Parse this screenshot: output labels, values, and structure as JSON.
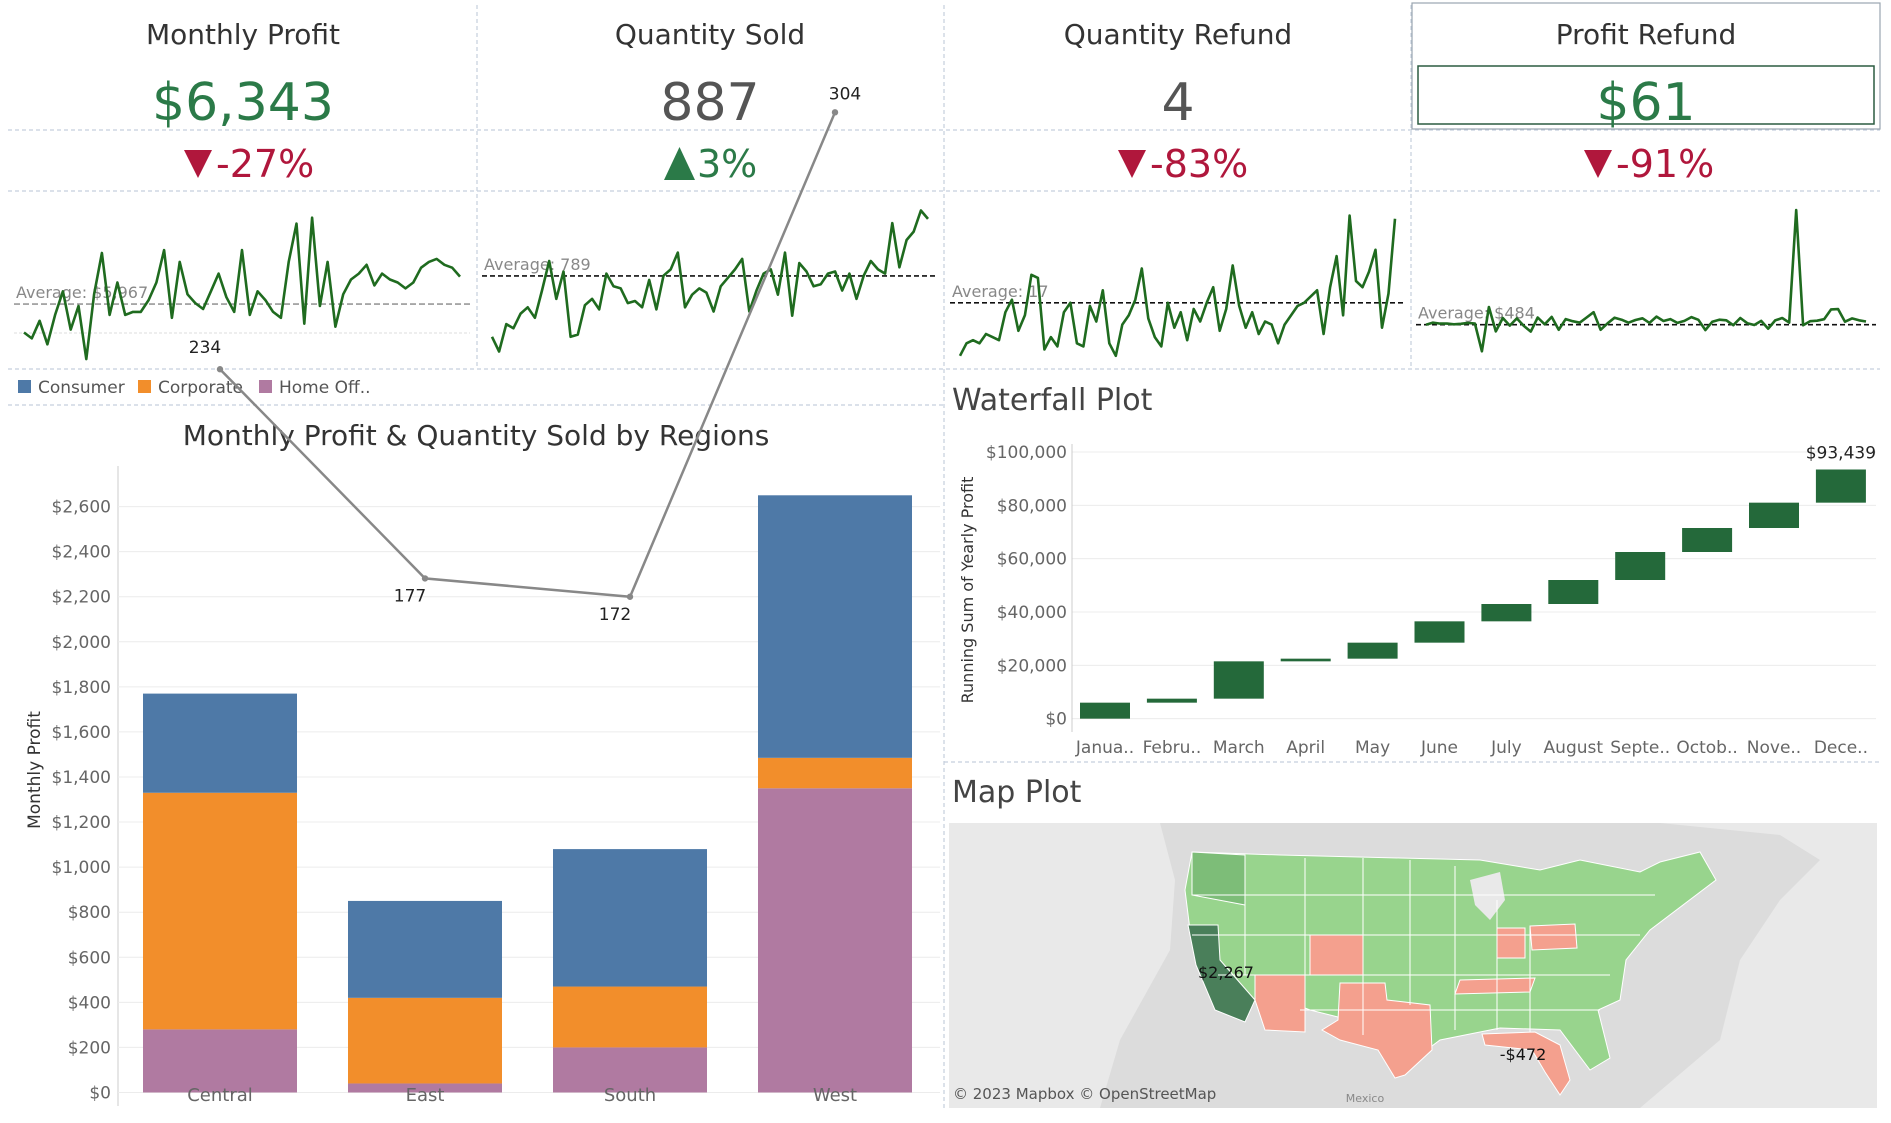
{
  "kpis": [
    {
      "title": "Monthly Profit",
      "value": "$6,343",
      "change": "-27%",
      "direction": "down",
      "avg_label": "Average: $5,967"
    },
    {
      "title": "Quantity Sold",
      "value": "887",
      "change": "3%",
      "direction": "up",
      "avg_label": "Average: 789"
    },
    {
      "title": "Quantity Refund",
      "value": "4",
      "change": "-83%",
      "direction": "down",
      "avg_label": "Average: 17"
    },
    {
      "title": "Profit Refund",
      "value": "$61",
      "change": "-91%",
      "direction": "down",
      "avg_label": "Average: $484"
    }
  ],
  "colors": {
    "green_value": "#2b7a48",
    "gray_value": "#555555",
    "up": "#2b7a48",
    "down": "#b0173c",
    "sparkline": "#1f6b1f",
    "consumer": "#4e79a7",
    "corporate": "#f28e2b",
    "home_office": "#b07aa1",
    "waterfall": "#24693a",
    "grid": "#ececec"
  },
  "legend": {
    "items": [
      {
        "label": "Consumer",
        "color": "#4e79a7"
      },
      {
        "label": "Corporate",
        "color": "#f28e2b"
      },
      {
        "label": "Home Off..",
        "color": "#b07aa1"
      }
    ]
  },
  "chart_data": [
    {
      "type": "line",
      "title": "",
      "series": [
        {
          "values": [
            5000,
            4800,
            5400,
            4600,
            5600,
            6400,
            5100,
            5900,
            4100,
            6300,
            7700,
            5600,
            6700,
            5600,
            5700,
            5700,
            6100,
            6700,
            7800,
            5500,
            7400,
            6300,
            6000,
            5800,
            6400,
            7000,
            6200,
            5700,
            7800,
            5600,
            6400,
            6100,
            5700,
            5500,
            7400,
            8700,
            5300,
            8900,
            5900,
            7400,
            5200,
            6300,
            6800,
            7000,
            7300,
            6600,
            7000,
            6800,
            6700,
            6500,
            6700,
            7200,
            7400,
            7500,
            7300,
            7200,
            6900
          ]
        }
      ],
      "average": 5967,
      "ylim": [
        4000,
        9500
      ]
    },
    {
      "type": "line",
      "title": "",
      "series": [
        {
          "values": [
            500,
            430,
            560,
            540,
            610,
            640,
            590,
            720,
            860,
            680,
            810,
            500,
            510,
            650,
            680,
            630,
            800,
            740,
            730,
            660,
            670,
            640,
            770,
            630,
            790,
            820,
            900,
            640,
            700,
            730,
            710,
            620,
            740,
            780,
            820,
            870,
            620,
            720,
            800,
            820,
            700,
            900,
            600,
            850,
            810,
            740,
            750,
            800,
            810,
            720,
            800,
            680,
            790,
            860,
            820,
            800,
            1040,
            830,
            960,
            1000,
            1100,
            1060
          ]
        }
      ],
      "average": 789,
      "ylim": [
        380,
        1150
      ]
    },
    {
      "type": "line",
      "title": "",
      "series": [
        {
          "values": [
            0,
            4,
            5,
            4,
            7,
            6,
            5,
            14,
            18,
            8,
            13,
            26,
            25,
            2,
            6,
            3,
            14,
            17,
            4,
            3,
            16,
            11,
            21,
            4,
            0,
            10,
            13,
            18,
            28,
            12,
            6,
            3,
            17,
            9,
            14,
            5,
            15,
            11,
            17,
            22,
            8,
            15,
            29,
            16,
            9,
            14,
            7,
            11,
            10,
            4,
            10,
            13,
            16,
            17,
            19,
            21,
            7,
            22,
            32,
            13,
            45,
            24,
            22,
            27,
            34,
            9,
            20,
            44
          ]
        }
      ],
      "average": 17,
      "ylim": [
        -2,
        50
      ]
    },
    {
      "type": "line",
      "title": "",
      "series": [
        {
          "values": [
            484,
            498,
            491,
            491,
            487,
            490,
            496,
            492,
            310,
            600,
            440,
            528,
            478,
            525,
            476,
            439,
            531,
            487,
            535,
            451,
            521,
            507,
            497,
            531,
            566,
            451,
            493,
            530,
            517,
            497,
            515,
            526,
            496,
            537,
            508,
            521,
            496,
            509,
            534,
            516,
            449,
            504,
            517,
            513,
            481,
            528,
            494,
            482,
            509,
            458,
            512,
            528,
            498,
            1234,
            480,
            507,
            510,
            520,
            584,
            586,
            504,
            525,
            513,
            505
          ]
        }
      ],
      "average": 484,
      "ylim": [
        240,
        1300
      ]
    },
    {
      "type": "bar",
      "title": "Monthly Profit & Quantity Sold by Regions",
      "xlabel": "",
      "ylabel": "Monthly Profit",
      "categories": [
        "Central",
        "East",
        "South",
        "West"
      ],
      "stacked": true,
      "series": [
        {
          "name": "Home Off..",
          "values": [
            280,
            40,
            200,
            1350
          ]
        },
        {
          "name": "Corporate",
          "values": [
            1050,
            380,
            270,
            135
          ]
        },
        {
          "name": "Consumer",
          "values": [
            440,
            430,
            610,
            1165
          ]
        }
      ],
      "line_series": {
        "values": [
          234,
          177,
          172,
          304
        ]
      },
      "ylim": [
        -60,
        2780
      ],
      "yticks": [
        0,
        200,
        400,
        600,
        800,
        1000,
        1200,
        1400,
        1600,
        1800,
        2000,
        2200,
        2400,
        2600
      ],
      "ytick_labels": [
        "$0",
        "$200",
        "$400",
        "$600",
        "$800",
        "$1,000",
        "$1,200",
        "$1,400",
        "$1,600",
        "$1,800",
        "$2,000",
        "$2,200",
        "$2,400",
        "$2,600"
      ],
      "legend": "top-left",
      "grid": true
    },
    {
      "type": "bar",
      "title": "Waterfall Plot",
      "xlabel": "",
      "ylabel": "Running Sum of Yearly Profit",
      "categories": [
        "Janua..",
        "Febru..",
        "March",
        "April",
        "May",
        "June",
        "July",
        "August",
        "Septe..",
        "Octob..",
        "Nove..",
        "Dece.."
      ],
      "ranges": [
        [
          0,
          6000
        ],
        [
          6000,
          7500
        ],
        [
          7500,
          21500
        ],
        [
          21500,
          22500
        ],
        [
          22500,
          28500
        ],
        [
          28500,
          36500
        ],
        [
          36500,
          43000
        ],
        [
          43000,
          52000
        ],
        [
          52000,
          62500
        ],
        [
          62500,
          71500
        ],
        [
          71500,
          81000
        ],
        [
          81000,
          93439
        ]
      ],
      "end_label": "$93,439",
      "ylim": [
        -5000,
        103000
      ],
      "yticks": [
        0,
        20000,
        40000,
        60000,
        80000,
        100000
      ],
      "ytick_labels": [
        "$0",
        "$20,000",
        "$40,000",
        "$60,000",
        "$80,000",
        "$100,000"
      ],
      "grid": true
    }
  ],
  "map": {
    "title": "Map Plot",
    "attribution": "© 2023 Mapbox © OpenStreetMap",
    "mexico_label": "Mexico",
    "labels": [
      {
        "text": "$2,267"
      },
      {
        "text": "-$472"
      }
    ]
  }
}
